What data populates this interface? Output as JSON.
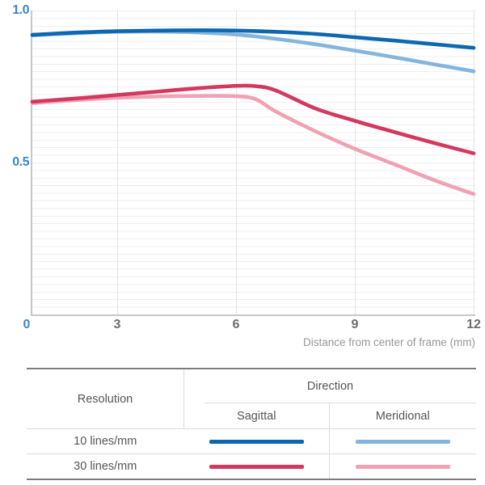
{
  "chart": {
    "xlabel": "Distance from center of frame (mm)"
  },
  "chart_data": {
    "type": "line",
    "title": "",
    "xlabel": "Distance from center of frame (mm)",
    "ylabel": "",
    "xlim": [
      0,
      12
    ],
    "ylim": [
      0,
      1.0
    ],
    "grid": true,
    "legend_position": "table-below",
    "xticks": [
      {
        "label": "0",
        "value": 0,
        "accent": true
      },
      {
        "label": "3",
        "value": 3
      },
      {
        "label": "6",
        "value": 6
      },
      {
        "label": "9",
        "value": 9
      },
      {
        "label": "12",
        "value": 12
      }
    ],
    "yticks": [
      {
        "label": "1.0",
        "value": 1.0
      },
      {
        "label": "0.5",
        "value": 0.5
      }
    ],
    "series": [
      {
        "id": "s10mer",
        "name": "10 lines/mm Meridional",
        "color": "#84b5dc",
        "x": [
          0,
          1,
          2,
          3,
          4,
          5,
          6,
          7,
          8,
          9,
          10,
          11,
          12
        ],
        "y": [
          0.918,
          0.923,
          0.927,
          0.93,
          0.931,
          0.928,
          0.921,
          0.907,
          0.889,
          0.868,
          0.846,
          0.823,
          0.8
        ]
      },
      {
        "id": "s30mer",
        "name": "30 lines/mm Meridional",
        "color": "#f0a2b4",
        "x": [
          0,
          1,
          2,
          3,
          4,
          5,
          6,
          6.5,
          7,
          8,
          9,
          10,
          11,
          12
        ],
        "y": [
          0.695,
          0.702,
          0.708,
          0.713,
          0.717,
          0.719,
          0.718,
          0.708,
          0.668,
          0.603,
          0.545,
          0.494,
          0.442,
          0.396
        ]
      },
      {
        "id": "s10sag",
        "name": "10 lines/mm Sagittal",
        "color": "#0d68b1",
        "x": [
          0,
          1,
          2,
          3,
          4,
          5,
          6,
          7,
          8,
          9,
          10,
          11,
          12
        ],
        "y": [
          0.92,
          0.925,
          0.929,
          0.932,
          0.934,
          0.935,
          0.934,
          0.93,
          0.923,
          0.912,
          0.901,
          0.889,
          0.877
        ]
      },
      {
        "id": "s30sag",
        "name": "30 lines/mm Sagittal",
        "color": "#d3385f",
        "x": [
          0,
          1,
          2,
          3,
          4,
          5,
          6,
          6.5,
          7,
          8,
          9,
          10,
          11,
          12
        ],
        "y": [
          0.7,
          0.707,
          0.714,
          0.722,
          0.733,
          0.744,
          0.752,
          0.751,
          0.737,
          0.678,
          0.637,
          0.6,
          0.564,
          0.53
        ]
      }
    ]
  },
  "table": {
    "resolution_header": "Resolution",
    "direction_header": "Direction",
    "sagittal_header": "Sagittal",
    "meridional_header": "Meridional",
    "rows": [
      {
        "label": "10 lines/mm",
        "sagittal": "s10sag",
        "meridional": "s10mer"
      },
      {
        "label": "30 lines/mm",
        "sagittal": "s30sag",
        "meridional": "s30mer"
      }
    ]
  },
  "colors": {
    "axis_accent": "#3d87c7",
    "tick_gray": "#6b6c6e",
    "caption_gray": "#96979a",
    "table_border_dark": "#7b7c7f",
    "table_border_light": "#dcdcdd",
    "table_text": "#55565a",
    "gridline_fine": "#efefef",
    "gridline_major": "#e3e3e4",
    "axis_line": "#c6c7c9"
  }
}
